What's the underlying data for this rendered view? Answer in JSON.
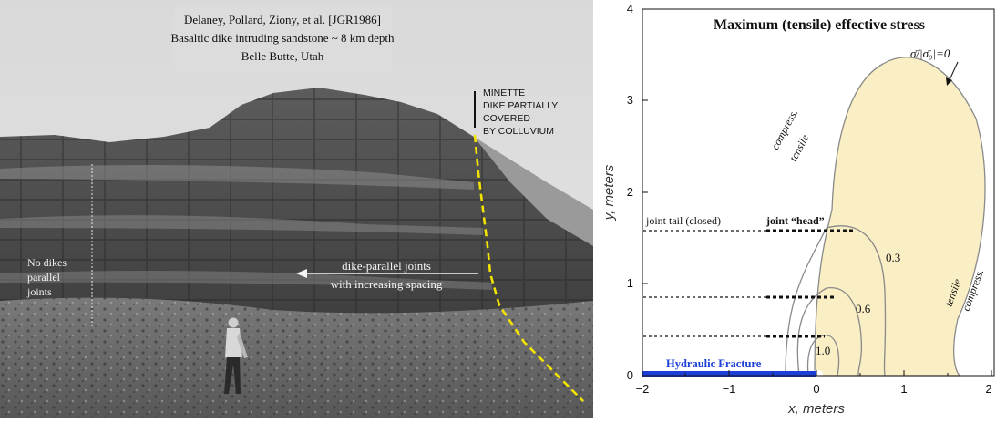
{
  "photo": {
    "caption_line1": "Delaney, Pollard, Ziony, et al. [JGR1986]",
    "caption_line2": "Basaltic dike intruding sandstone ~ 8 km depth",
    "caption_line3": "Belle Butte, Utah",
    "sign_line1": "MINETTE",
    "sign_line2": "DIKE PARTIALLY",
    "sign_line3": "COVERED",
    "sign_line4": "BY COLLUVIUM",
    "left_label_line1": "No dikes",
    "left_label_line2": "parallel",
    "left_label_line3": "joints",
    "arrow_label_line1": "dike-parallel joints",
    "arrow_label_line2": "with increasing spacing"
  },
  "plot": {
    "title": "Maximum (tensile) effective stress",
    "contour_note": "σ̄/|σ̄₀|=0",
    "compress_top": "compress.",
    "tensile_top": "tensile",
    "tensile_right": "tensile",
    "compress_right": "compress.",
    "joint_tail_label": "joint tail (closed)",
    "joint_head_label": "joint “head”",
    "contour_03": "0.3",
    "contour_06": "0.6",
    "contour_10": "1.0",
    "fracture_label": "Hydraulic Fracture",
    "xlabel": "x, meters",
    "ylabel": "y, meters",
    "x_ticks": [
      "−2",
      "−1",
      "0",
      "1",
      "2"
    ],
    "y_ticks": [
      "0",
      "1",
      "2",
      "3",
      "4"
    ]
  },
  "chart_data": {
    "type": "contour",
    "title": "Maximum (tensile) effective stress",
    "xlabel": "x, meters",
    "ylabel": "y, meters",
    "xlim": [
      -2,
      2
    ],
    "ylim": [
      0,
      4
    ],
    "contour_levels": [
      0,
      0.3,
      0.6,
      1.0
    ],
    "joints_y": [
      1.58,
      0.86,
      0.43
    ],
    "hydraulic_fracture": {
      "x_start": -2,
      "x_end": 0,
      "y": 0
    },
    "colors": {
      "tensile_fill": "#faeec4",
      "contour": "#8a8a8a",
      "fracture": "#1d3fd6",
      "joint": "#111111"
    }
  }
}
